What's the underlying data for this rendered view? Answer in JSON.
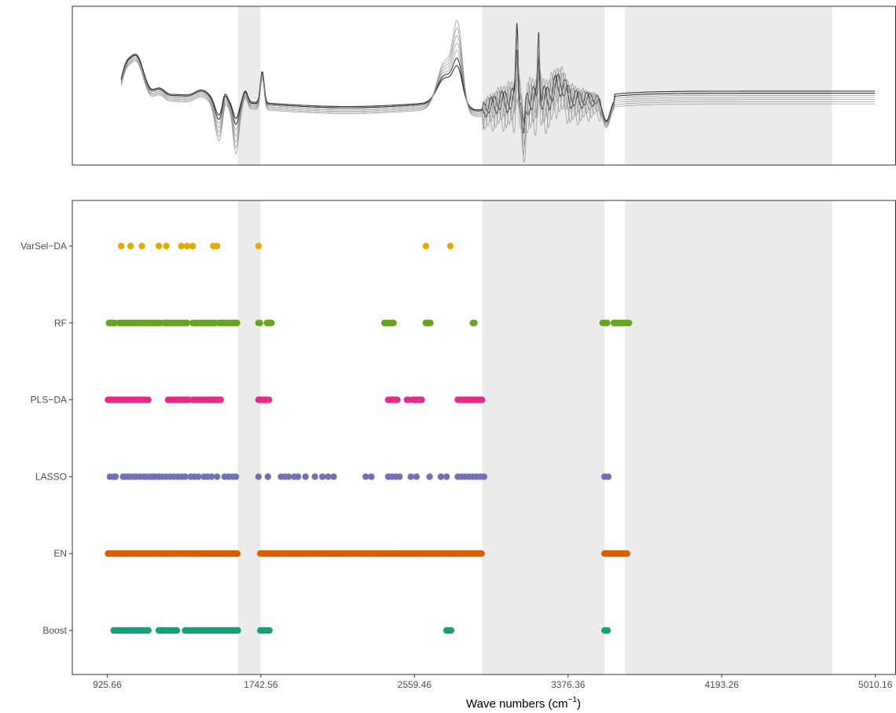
{
  "chart_data": [
    {
      "type": "line",
      "title": "",
      "description_free": true,
      "x_range": [
        925.66,
        5010.16
      ],
      "y_axis_labels": false,
      "shaded_regions": [
        [
          1620,
          1740
        ],
        [
          2920,
          3570
        ],
        [
          3680,
          4780
        ]
      ],
      "series_count": 7,
      "series_color": "#333333"
    },
    {
      "type": "scatter",
      "xlabel": "Wave numbers (cm",
      "xlabel_superscript": "−1",
      "xlabel_suffix": ")",
      "xlim": [
        740,
        5120
      ],
      "x_ticks": [
        925.66,
        1742.56,
        2559.46,
        3376.36,
        4193.26,
        5010.16
      ],
      "x_tick_labels": [
        "925.66",
        "1742.56",
        "2559.46",
        "3376.36",
        "4193.26",
        "5010.16"
      ],
      "shaded_regions": [
        [
          1620,
          1740
        ],
        [
          2920,
          3570
        ],
        [
          3680,
          4780
        ]
      ],
      "categories": [
        "VarSel−DA",
        "RF",
        "PLS−DA",
        "LASSO",
        "EN",
        "Boost"
      ],
      "series": [
        {
          "name": "VarSel−DA",
          "color": "#E6AB02",
          "points": [
            1000,
            1050,
            1110,
            1200,
            1240,
            1320,
            1350,
            1380,
            1490,
            1510,
            1730,
            2620,
            2750
          ]
        },
        {
          "name": "RF",
          "ranges": [
            [
              935,
              970
            ],
            [
              990,
              1040
            ],
            [
              1050,
              1210
            ],
            [
              1230,
              1350
            ],
            [
              1380,
              1500
            ],
            [
              1520,
              1620
            ],
            [
              1730,
              1745
            ],
            [
              1775,
              1800
            ],
            [
              2400,
              2450
            ],
            [
              2620,
              2650
            ],
            [
              2870,
              2880
            ],
            [
              3560,
              3590
            ],
            [
              3620,
              3700
            ]
          ],
          "color": "#66A61E"
        },
        {
          "name": "PLS−DA",
          "ranges": [
            [
              930,
              1020
            ],
            [
              1030,
              1115
            ],
            [
              1120,
              1145
            ],
            [
              1250,
              1300
            ],
            [
              1310,
              1360
            ],
            [
              1380,
              1415
            ],
            [
              1425,
              1530
            ],
            [
              1730,
              1790
            ],
            [
              2420,
              2470
            ],
            [
              2520,
              2530
            ],
            [
              2550,
              2600
            ],
            [
              2790,
              2920
            ]
          ],
          "color": "#E7298A"
        },
        {
          "name": "LASSO",
          "points": [
            940,
            960,
            970,
            1010,
            1020,
            1035,
            1050,
            1070,
            1080,
            1100,
            1120,
            1130,
            1150,
            1165,
            1180,
            1200,
            1220,
            1240,
            1260,
            1280,
            1300,
            1320,
            1340,
            1370,
            1390,
            1410,
            1440,
            1460,
            1480,
            1510,
            1550,
            1570,
            1590,
            1610,
            1730,
            1780,
            1850,
            1870,
            1890,
            1920,
            1940,
            1980,
            2030,
            2070,
            2100,
            2130,
            2300,
            2330,
            2420,
            2440,
            2460,
            2480,
            2540,
            2570,
            2640,
            2700,
            2730,
            2790,
            2810,
            2830,
            2850,
            2870,
            2890,
            2910,
            2930,
            3570,
            3590
          ],
          "color": "#7570B3"
        },
        {
          "name": "EN",
          "ranges": [
            [
              930,
              1620
            ],
            [
              1740,
              2920
            ],
            [
              3570,
              3690
            ]
          ],
          "color": "#D95F02"
        },
        {
          "name": "Boost",
          "ranges": [
            [
              960,
              1150
            ],
            [
              1200,
              1300
            ],
            [
              1340,
              1620
            ],
            [
              1740,
              1790
            ],
            [
              2730,
              2760
            ],
            [
              3570,
              3590
            ]
          ],
          "color": "#1B9E77"
        }
      ]
    }
  ]
}
